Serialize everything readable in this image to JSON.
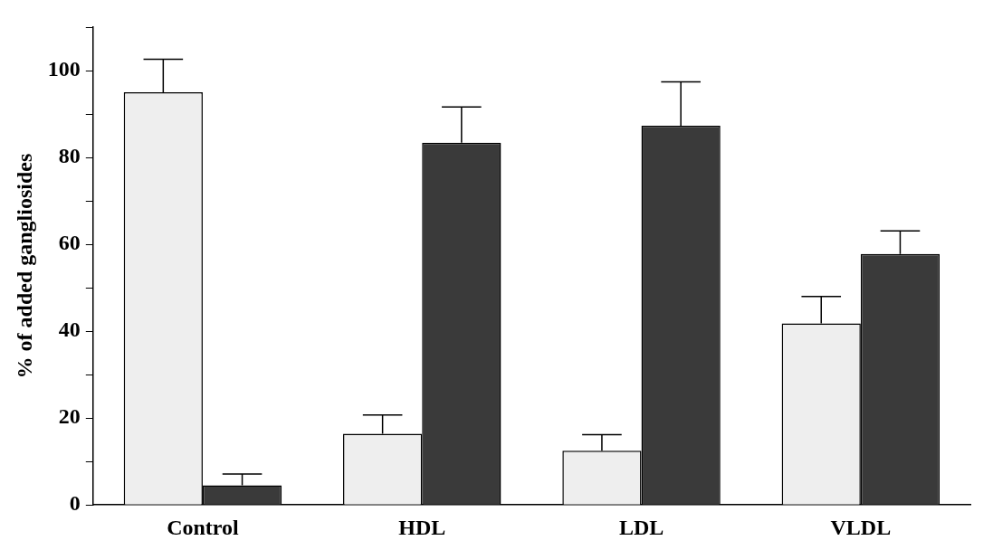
{
  "chart_data": {
    "type": "bar",
    "ylabel": "% of added gangliosides",
    "categories": [
      "Control",
      "HDL",
      "LDL",
      "VLDL"
    ],
    "series": [
      {
        "color": "#eeeeee",
        "values": [
          95.0,
          16.4,
          12.5,
          41.8
        ],
        "errors": [
          [
            95.0,
            102.6
          ],
          [
            16.4,
            20.7
          ],
          [
            12.5,
            16.2
          ],
          [
            41.8,
            48.0
          ]
        ]
      },
      {
        "color": "#3a3a3a",
        "values": [
          4.5,
          83.4,
          87.3,
          57.8
        ],
        "errors": [
          [
            4.5,
            7.1
          ],
          [
            83.4,
            91.6
          ],
          [
            87.3,
            97.4
          ],
          [
            57.8,
            63.1
          ]
        ]
      }
    ],
    "ylim": [
      0,
      110
    ],
    "yticks": [
      0,
      {
        "value": 10,
        "label": null
      },
      20,
      {
        "value": 30,
        "label": null
      },
      40,
      {
        "value": 50,
        "label": null
      },
      60,
      {
        "value": 70,
        "label": null
      },
      80,
      {
        "value": 90,
        "label": null
      },
      100,
      {
        "value": 110,
        "label": null
      }
    ],
    "grid": false,
    "legend": false
  }
}
